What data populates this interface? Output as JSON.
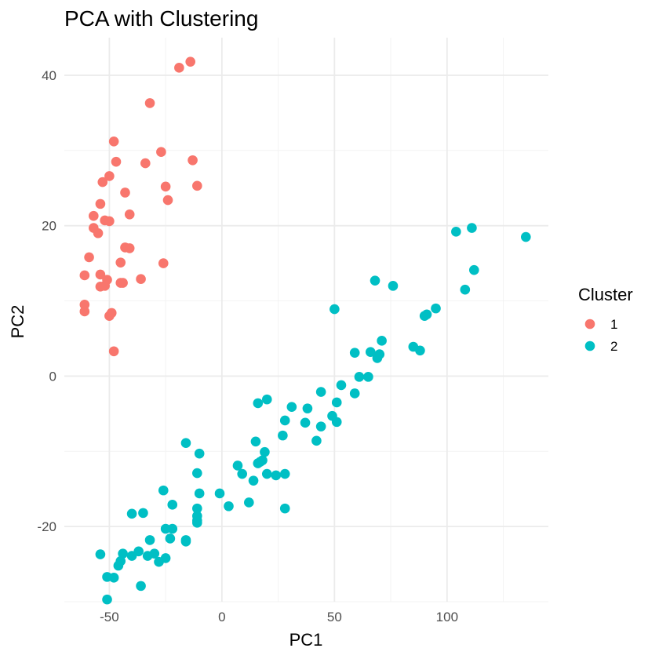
{
  "chart_data": {
    "type": "scatter",
    "title": "PCA with Clustering",
    "xlabel": "PC1",
    "ylabel": "PC2",
    "xlim": [
      -70,
      145
    ],
    "ylim": [
      -30,
      45
    ],
    "x_ticks": [
      -50,
      0,
      50,
      100
    ],
    "y_ticks": [
      -20,
      0,
      20,
      40
    ],
    "grid": true,
    "legend": {
      "title": "Cluster",
      "placement": "right"
    },
    "series": [
      {
        "name": "1",
        "color": "#F8766D",
        "points": [
          [
            -14,
            41.8
          ],
          [
            -19,
            41.0
          ],
          [
            -32,
            36.3
          ],
          [
            -48,
            31.2
          ],
          [
            -27,
            29.8
          ],
          [
            -13,
            28.7
          ],
          [
            -47,
            28.5
          ],
          [
            -34,
            28.3
          ],
          [
            -50,
            26.6
          ],
          [
            -53,
            25.8
          ],
          [
            -11,
            25.3
          ],
          [
            -25,
            25.2
          ],
          [
            -43,
            24.4
          ],
          [
            -24,
            23.4
          ],
          [
            -54,
            22.9
          ],
          [
            -57,
            21.3
          ],
          [
            -41,
            21.5
          ],
          [
            -52,
            20.7
          ],
          [
            -50,
            20.6
          ],
          [
            -57,
            19.7
          ],
          [
            -55,
            19.0
          ],
          [
            -43,
            17.1
          ],
          [
            -41,
            17.0
          ],
          [
            -59,
            15.8
          ],
          [
            -45,
            15.1
          ],
          [
            -26,
            15.0
          ],
          [
            -61,
            13.4
          ],
          [
            -54,
            13.5
          ],
          [
            -51,
            12.8
          ],
          [
            -36,
            12.9
          ],
          [
            -52,
            12.0
          ],
          [
            -54,
            11.9
          ],
          [
            -45,
            12.4
          ],
          [
            -44,
            12.4
          ],
          [
            -61,
            9.5
          ],
          [
            -61,
            8.6
          ],
          [
            -49,
            8.4
          ],
          [
            -50,
            8.0
          ],
          [
            -48,
            3.3
          ]
        ]
      },
      {
        "name": "2",
        "color": "#00BFC4",
        "points": [
          [
            135,
            18.5
          ],
          [
            111,
            19.7
          ],
          [
            104,
            19.2
          ],
          [
            112,
            14.1
          ],
          [
            108,
            11.5
          ],
          [
            68,
            12.7
          ],
          [
            76,
            12.0
          ],
          [
            95,
            9.0
          ],
          [
            91,
            8.2
          ],
          [
            90,
            8.0
          ],
          [
            50,
            8.9
          ],
          [
            71,
            4.7
          ],
          [
            85,
            3.9
          ],
          [
            88,
            3.4
          ],
          [
            59,
            3.1
          ],
          [
            66,
            3.2
          ],
          [
            70,
            2.9
          ],
          [
            69,
            2.4
          ],
          [
            61,
            -0.1
          ],
          [
            65,
            -0.1
          ],
          [
            53,
            -1.2
          ],
          [
            44,
            -2.1
          ],
          [
            59,
            -2.3
          ],
          [
            51,
            -3.5
          ],
          [
            16,
            -3.6
          ],
          [
            20,
            -3.1
          ],
          [
            31,
            -4.1
          ],
          [
            38,
            -4.3
          ],
          [
            28,
            -5.9
          ],
          [
            37,
            -6.2
          ],
          [
            49,
            -5.3
          ],
          [
            51,
            -6.1
          ],
          [
            44,
            -6.7
          ],
          [
            27,
            -7.9
          ],
          [
            42,
            -8.6
          ],
          [
            15,
            -8.7
          ],
          [
            -16,
            -8.9
          ],
          [
            -10,
            -10.3
          ],
          [
            19,
            -10.1
          ],
          [
            18,
            -11.2
          ],
          [
            16,
            -11.6
          ],
          [
            17,
            -11.4
          ],
          [
            7,
            -11.9
          ],
          [
            9,
            -13.0
          ],
          [
            -11,
            -12.9
          ],
          [
            20,
            -13.0
          ],
          [
            24,
            -13.2
          ],
          [
            28,
            -13.0
          ],
          [
            14,
            -13.9
          ],
          [
            -26,
            -15.2
          ],
          [
            -10,
            -15.6
          ],
          [
            -1,
            -15.6
          ],
          [
            -22,
            -17.1
          ],
          [
            12,
            -16.8
          ],
          [
            3,
            -17.3
          ],
          [
            28,
            -17.6
          ],
          [
            -11,
            -17.6
          ],
          [
            -40,
            -18.3
          ],
          [
            -35,
            -18.2
          ],
          [
            -11,
            -18.6
          ],
          [
            -11,
            -19.2
          ],
          [
            -11,
            -19.5
          ],
          [
            -25,
            -20.3
          ],
          [
            -22,
            -20.3
          ],
          [
            -23,
            -21.6
          ],
          [
            -16,
            -21.8
          ],
          [
            -16,
            -22.0
          ],
          [
            -32,
            -21.8
          ],
          [
            -37,
            -23.3
          ],
          [
            -30,
            -23.6
          ],
          [
            -54,
            -23.7
          ],
          [
            -44,
            -23.6
          ],
          [
            -40,
            -23.9
          ],
          [
            -33,
            -23.9
          ],
          [
            -45,
            -24.6
          ],
          [
            -28,
            -24.7
          ],
          [
            -25,
            -24.2
          ],
          [
            -46,
            -25.2
          ],
          [
            -51,
            -26.7
          ],
          [
            -48,
            -26.8
          ],
          [
            -36,
            -27.9
          ],
          [
            -51,
            -29.7
          ]
        ]
      }
    ]
  }
}
